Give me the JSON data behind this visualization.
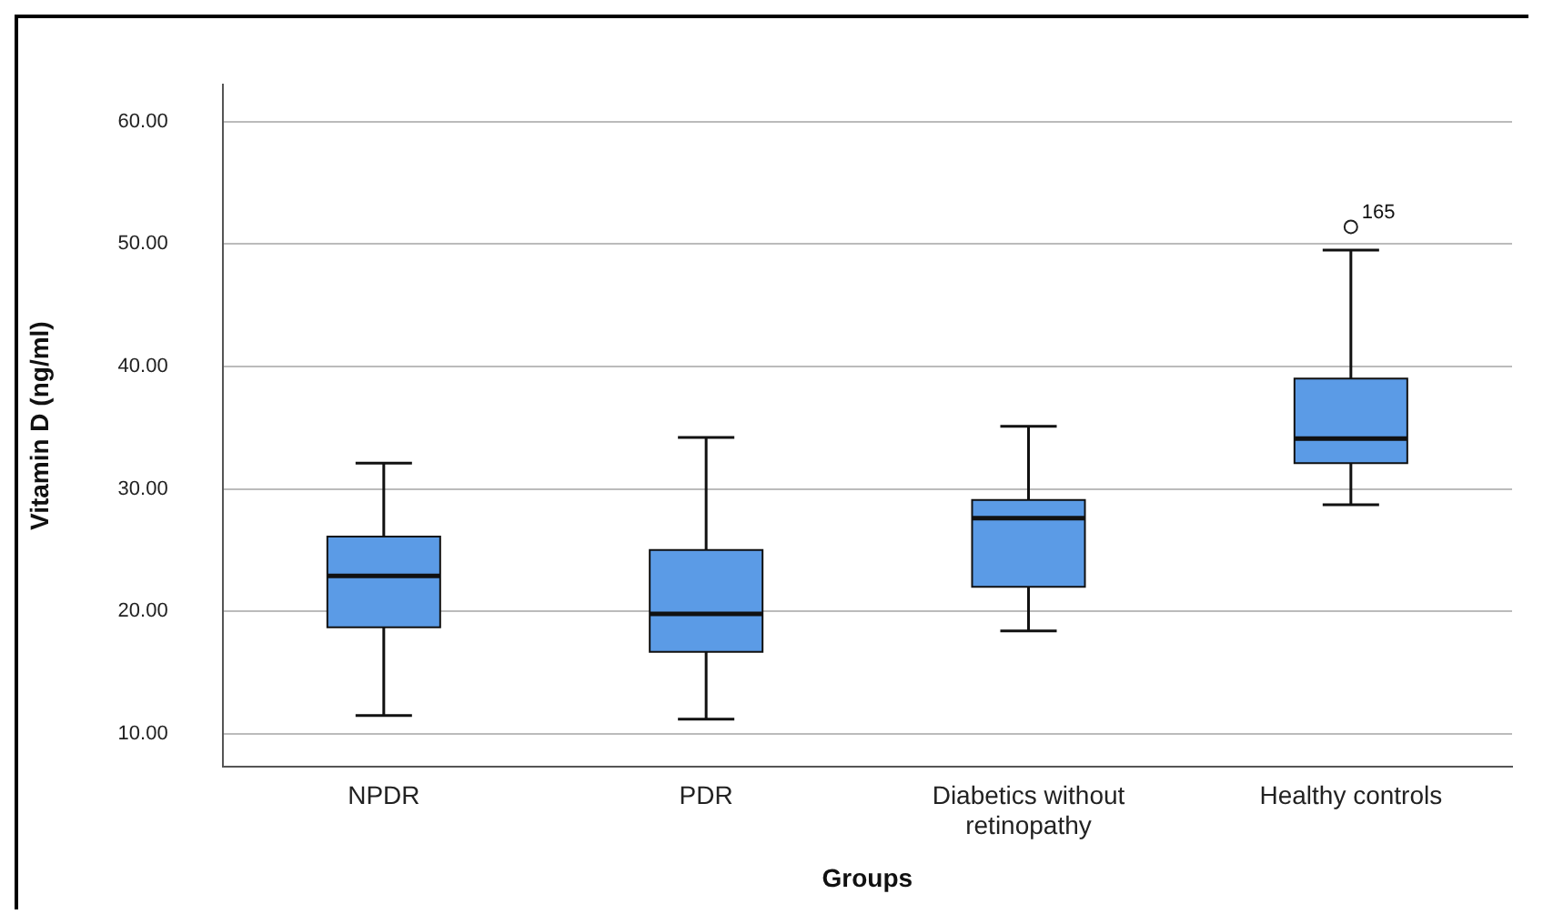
{
  "chart_data": {
    "type": "box",
    "xlabel": "Groups",
    "ylabel": "Vitamin D (ng/ml)",
    "categories": [
      "NPDR",
      "PDR",
      "Diabetics without retinopathy",
      "Healthy controls"
    ],
    "boxes": [
      {
        "low": 11.5,
        "q1": 18.7,
        "median": 22.9,
        "q3": 26.1,
        "high": 32.1
      },
      {
        "low": 11.2,
        "q1": 16.7,
        "median": 19.8,
        "q3": 25.0,
        "high": 34.2
      },
      {
        "low": 18.4,
        "q1": 22.0,
        "median": 27.6,
        "q3": 29.1,
        "high": 35.1
      },
      {
        "low": 28.7,
        "q1": 32.1,
        "median": 34.1,
        "q3": 39.0,
        "high": 49.5,
        "outliers": [
          51.4
        ]
      }
    ],
    "color": "#5b9be6",
    "ylim": [
      7.3,
      63
    ],
    "yticks": [
      {
        "value": 10,
        "label": "10.00"
      },
      {
        "value": 20,
        "label": "20.00"
      },
      {
        "value": 30,
        "label": "30.00"
      },
      {
        "value": 40,
        "label": "40.00"
      },
      {
        "value": 50,
        "label": "50.00"
      },
      {
        "value": 60,
        "label": "60.00"
      }
    ],
    "grid": "y",
    "legend": false,
    "marker": "circle",
    "annotations": [
      "165"
    ]
  }
}
